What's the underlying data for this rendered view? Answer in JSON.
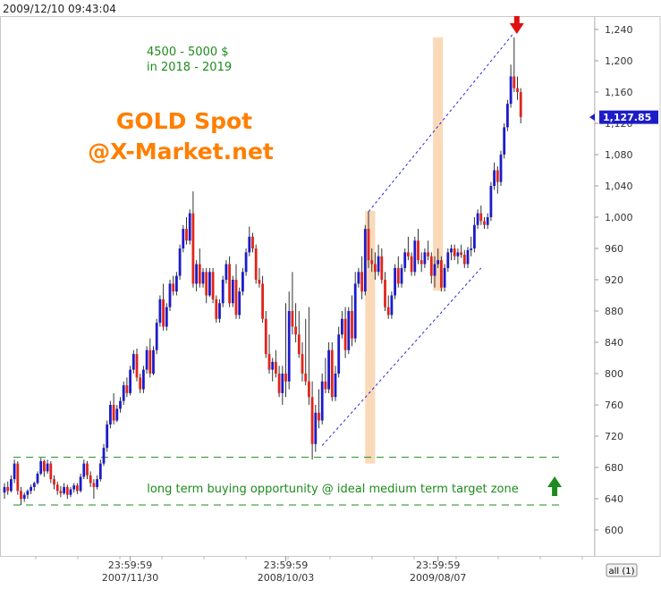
{
  "timestamp": "2009/12/10 09:43:04",
  "all_button": "all (1)",
  "chart_data": {
    "type": "candlestick",
    "title": "GOLD Spot\n@X-Market.net",
    "title_lines": [
      "GOLD Spot",
      "@X-Market.net"
    ],
    "note_lines": [
      "4500 - 5000 $",
      "in 2018 - 2019"
    ],
    "buy_zone_label": "long term buying opportunity @ ideal medium term target zone",
    "ylim": [
      580,
      1265
    ],
    "yticks": [
      600,
      640,
      680,
      720,
      760,
      800,
      840,
      880,
      920,
      960,
      1000,
      1040,
      1080,
      1120,
      1160,
      1200,
      1240
    ],
    "ytick_labels": [
      "600",
      "640",
      "680",
      "720",
      "760",
      "800",
      "840",
      "880",
      "920",
      "960",
      "1,000",
      "1,040",
      "1,080",
      "1,120",
      "1,160",
      "1,200",
      "1,240"
    ],
    "xticks": [
      {
        "time": "23:59:59",
        "date": "2007/11/30",
        "pos": 38
      },
      {
        "time": "23:59:59",
        "date": "2008/10/03",
        "pos": 85
      },
      {
        "time": "23:59:59",
        "date": "2009/08/07",
        "pos": 131
      }
    ],
    "xlim": [
      0,
      175
    ],
    "last_price": 1127.85,
    "last_price_label": "1,127.85",
    "up_color": "#1c1cc8",
    "down_color": "#e0251b",
    "grid": false,
    "buy_zone": {
      "upper": 693,
      "lower": 632
    },
    "channel": {
      "lower": [
        [
          96,
          708
        ],
        [
          144,
          935
        ]
      ],
      "upper": [
        [
          110,
          1007
        ],
        [
          154,
          1236
        ]
      ]
    },
    "highlights": [
      {
        "x": 110.5,
        "width": 3,
        "low": 685,
        "high": 1008
      },
      {
        "x": 131,
        "width": 3,
        "low": 906,
        "high": 1230
      }
    ],
    "peak_arrow_x": 154,
    "buy_arrow_x": 163,
    "candles": [
      [
        0,
        648,
        660,
        640,
        655
      ],
      [
        1,
        655,
        662,
        645,
        650
      ],
      [
        2,
        650,
        670,
        648,
        665
      ],
      [
        3,
        665,
        690,
        660,
        685
      ],
      [
        4,
        685,
        688,
        645,
        650
      ],
      [
        5,
        650,
        655,
        632,
        640
      ],
      [
        6,
        640,
        648,
        636,
        645
      ],
      [
        7,
        645,
        652,
        640,
        650
      ],
      [
        8,
        650,
        658,
        646,
        655
      ],
      [
        9,
        655,
        662,
        650,
        660
      ],
      [
        10,
        660,
        675,
        658,
        672
      ],
      [
        11,
        672,
        692,
        670,
        688
      ],
      [
        12,
        688,
        690,
        668,
        675
      ],
      [
        13,
        675,
        690,
        672,
        685
      ],
      [
        14,
        685,
        688,
        660,
        665
      ],
      [
        15,
        665,
        670,
        652,
        658
      ],
      [
        16,
        658,
        662,
        645,
        650
      ],
      [
        17,
        650,
        656,
        642,
        647
      ],
      [
        18,
        647,
        660,
        645,
        655
      ],
      [
        19,
        655,
        658,
        640,
        645
      ],
      [
        20,
        645,
        655,
        642,
        652
      ],
      [
        21,
        652,
        660,
        648,
        657
      ],
      [
        22,
        657,
        660,
        646,
        650
      ],
      [
        23,
        650,
        672,
        648,
        668
      ],
      [
        24,
        668,
        690,
        665,
        685
      ],
      [
        25,
        685,
        688,
        665,
        670
      ],
      [
        26,
        670,
        675,
        655,
        660
      ],
      [
        27,
        660,
        665,
        640,
        655
      ],
      [
        28,
        655,
        670,
        652,
        665
      ],
      [
        29,
        665,
        690,
        662,
        685
      ],
      [
        30,
        685,
        710,
        682,
        705
      ],
      [
        31,
        705,
        740,
        700,
        735
      ],
      [
        32,
        735,
        765,
        730,
        760
      ],
      [
        33,
        760,
        775,
        735,
        740
      ],
      [
        34,
        740,
        760,
        738,
        755
      ],
      [
        35,
        755,
        770,
        750,
        765
      ],
      [
        36,
        765,
        790,
        760,
        785
      ],
      [
        37,
        785,
        795,
        770,
        775
      ],
      [
        38,
        775,
        810,
        772,
        805
      ],
      [
        39,
        805,
        830,
        800,
        825
      ],
      [
        40,
        825,
        832,
        790,
        795
      ],
      [
        41,
        795,
        800,
        775,
        780
      ],
      [
        42,
        780,
        810,
        775,
        805
      ],
      [
        43,
        805,
        835,
        800,
        830
      ],
      [
        44,
        830,
        845,
        795,
        800
      ],
      [
        45,
        800,
        835,
        798,
        830
      ],
      [
        46,
        830,
        870,
        825,
        865
      ],
      [
        47,
        865,
        900,
        860,
        895
      ],
      [
        48,
        895,
        915,
        855,
        860
      ],
      [
        49,
        860,
        890,
        855,
        885
      ],
      [
        50,
        885,
        920,
        880,
        915
      ],
      [
        51,
        915,
        925,
        900,
        905
      ],
      [
        52,
        905,
        930,
        900,
        925
      ],
      [
        53,
        925,
        965,
        920,
        960
      ],
      [
        54,
        960,
        990,
        955,
        985
      ],
      [
        55,
        985,
        1000,
        965,
        970
      ],
      [
        56,
        970,
        1010,
        965,
        1005
      ],
      [
        57,
        1005,
        1033,
        910,
        915
      ],
      [
        58,
        915,
        945,
        905,
        940
      ],
      [
        59,
        940,
        960,
        910,
        915
      ],
      [
        60,
        915,
        935,
        910,
        930
      ],
      [
        61,
        930,
        935,
        890,
        900
      ],
      [
        62,
        900,
        935,
        898,
        930
      ],
      [
        63,
        930,
        935,
        890,
        895
      ],
      [
        64,
        895,
        900,
        865,
        870
      ],
      [
        65,
        870,
        895,
        865,
        890
      ],
      [
        66,
        890,
        925,
        885,
        920
      ],
      [
        67,
        920,
        945,
        915,
        940
      ],
      [
        68,
        940,
        950,
        885,
        890
      ],
      [
        69,
        890,
        925,
        885,
        920
      ],
      [
        70,
        920,
        940,
        870,
        875
      ],
      [
        71,
        875,
        910,
        870,
        905
      ],
      [
        72,
        905,
        935,
        900,
        930
      ],
      [
        73,
        930,
        960,
        925,
        955
      ],
      [
        74,
        955,
        988,
        950,
        975
      ],
      [
        75,
        975,
        980,
        955,
        960
      ],
      [
        76,
        960,
        965,
        915,
        920
      ],
      [
        77,
        920,
        935,
        910,
        915
      ],
      [
        78,
        915,
        925,
        865,
        870
      ],
      [
        79,
        870,
        880,
        820,
        825
      ],
      [
        80,
        825,
        850,
        800,
        805
      ],
      [
        81,
        805,
        820,
        790,
        815
      ],
      [
        82,
        815,
        830,
        795,
        800
      ],
      [
        83,
        800,
        810,
        770,
        775
      ],
      [
        84,
        775,
        810,
        760,
        800
      ],
      [
        85,
        800,
        890,
        770,
        790
      ],
      [
        86,
        790,
        905,
        780,
        880
      ],
      [
        87,
        880,
        930,
        850,
        860
      ],
      [
        88,
        860,
        890,
        840,
        850
      ],
      [
        89,
        850,
        880,
        820,
        825
      ],
      [
        90,
        825,
        840,
        790,
        800
      ],
      [
        91,
        800,
        870,
        785,
        790
      ],
      [
        92,
        790,
        885,
        760,
        770
      ],
      [
        93,
        770,
        790,
        690,
        710
      ],
      [
        94,
        710,
        760,
        700,
        750
      ],
      [
        95,
        750,
        780,
        730,
        740
      ],
      [
        96,
        740,
        800,
        735,
        790
      ],
      [
        97,
        790,
        820,
        775,
        780
      ],
      [
        98,
        780,
        840,
        775,
        830
      ],
      [
        99,
        830,
        840,
        765,
        770
      ],
      [
        100,
        770,
        810,
        765,
        800
      ],
      [
        101,
        800,
        860,
        795,
        850
      ],
      [
        102,
        850,
        880,
        845,
        870
      ],
      [
        103,
        870,
        885,
        820,
        830
      ],
      [
        104,
        830,
        885,
        825,
        880
      ],
      [
        105,
        880,
        900,
        835,
        845
      ],
      [
        106,
        845,
        930,
        840,
        915
      ],
      [
        107,
        915,
        935,
        910,
        930
      ],
      [
        108,
        930,
        950,
        895,
        905
      ],
      [
        109,
        905,
        990,
        900,
        985
      ],
      [
        110,
        985,
        1007,
        935,
        945
      ],
      [
        111,
        945,
        960,
        930,
        940
      ],
      [
        112,
        940,
        955,
        920,
        930
      ],
      [
        113,
        930,
        965,
        925,
        950
      ],
      [
        114,
        950,
        960,
        915,
        920
      ],
      [
        115,
        920,
        930,
        880,
        885
      ],
      [
        116,
        885,
        900,
        870,
        875
      ],
      [
        117,
        875,
        905,
        870,
        900
      ],
      [
        118,
        900,
        940,
        895,
        935
      ],
      [
        119,
        935,
        950,
        910,
        915
      ],
      [
        120,
        915,
        940,
        910,
        935
      ],
      [
        121,
        935,
        960,
        930,
        955
      ],
      [
        122,
        955,
        975,
        945,
        950
      ],
      [
        123,
        950,
        955,
        925,
        930
      ],
      [
        124,
        930,
        975,
        925,
        970
      ],
      [
        125,
        970,
        985,
        940,
        945
      ],
      [
        126,
        945,
        955,
        930,
        940
      ],
      [
        127,
        940,
        960,
        935,
        955
      ],
      [
        128,
        955,
        970,
        945,
        950
      ],
      [
        129,
        950,
        955,
        915,
        925
      ],
      [
        130,
        925,
        950,
        910,
        940
      ],
      [
        131,
        940,
        960,
        935,
        945
      ],
      [
        132,
        945,
        950,
        905,
        910
      ],
      [
        133,
        910,
        940,
        905,
        935
      ],
      [
        134,
        935,
        960,
        930,
        955
      ],
      [
        135,
        955,
        965,
        945,
        960
      ],
      [
        136,
        960,
        965,
        945,
        950
      ],
      [
        137,
        950,
        960,
        940,
        955
      ],
      [
        138,
        955,
        965,
        948,
        952
      ],
      [
        139,
        952,
        958,
        935,
        940
      ],
      [
        140,
        940,
        962,
        935,
        958
      ],
      [
        141,
        958,
        975,
        950,
        960
      ],
      [
        142,
        960,
        1000,
        955,
        990
      ],
      [
        143,
        990,
        1010,
        985,
        1005
      ],
      [
        144,
        1005,
        1015,
        990,
        995
      ],
      [
        145,
        995,
        1000,
        985,
        990
      ],
      [
        146,
        990,
        1005,
        985,
        1000
      ],
      [
        147,
        1000,
        1045,
        995,
        1040
      ],
      [
        148,
        1040,
        1070,
        1035,
        1060
      ],
      [
        149,
        1060,
        1065,
        1030,
        1045
      ],
      [
        150,
        1045,
        1085,
        1040,
        1080
      ],
      [
        151,
        1080,
        1120,
        1075,
        1115
      ],
      [
        152,
        1115,
        1150,
        1110,
        1145
      ],
      [
        153,
        1145,
        1195,
        1140,
        1180
      ],
      [
        154,
        1180,
        1230,
        1160,
        1165
      ],
      [
        155,
        1165,
        1180,
        1150,
        1160
      ],
      [
        156,
        1160,
        1165,
        1120,
        1128
      ]
    ]
  }
}
